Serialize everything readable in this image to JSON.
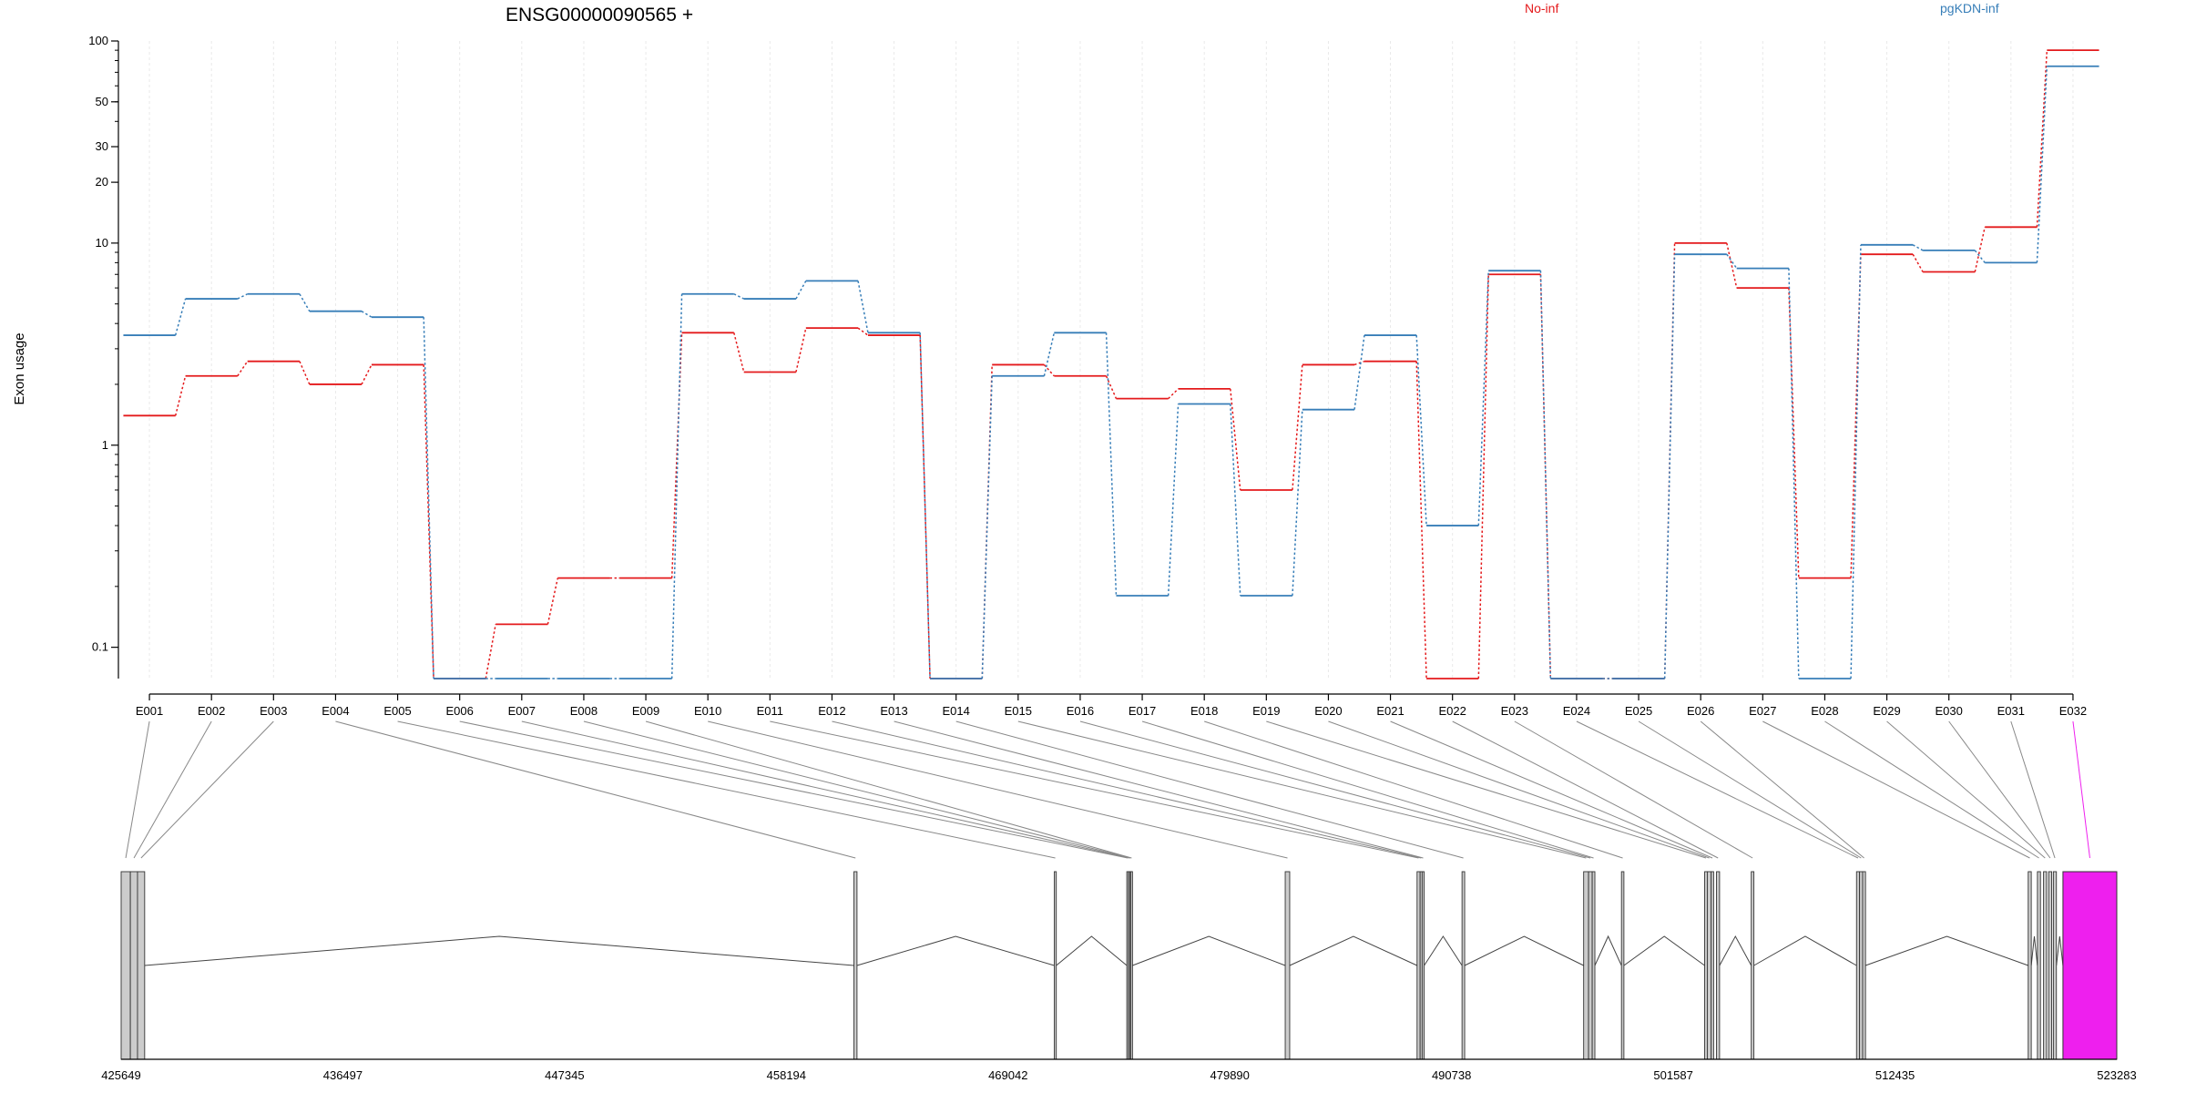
{
  "chart_data": {
    "type": "line",
    "title": "ENSG00000090565 +",
    "xlabel": "",
    "ylabel": "Exon usage",
    "y_scale": "log",
    "ylim": [
      0.07,
      100
    ],
    "y_ticks": [
      "100",
      "50",
      "30",
      "20",
      "10",
      "1",
      "0.1"
    ],
    "y_tick_values": [
      100,
      50,
      30,
      20,
      10,
      1,
      0.1
    ],
    "categories": [
      "E001",
      "E002",
      "E003",
      "E004",
      "E005",
      "E006",
      "E007",
      "E008",
      "E009",
      "E010",
      "E011",
      "E012",
      "E013",
      "E014",
      "E015",
      "E016",
      "E017",
      "E018",
      "E019",
      "E020",
      "E021",
      "E022",
      "E023",
      "E024",
      "E025",
      "E026",
      "E027",
      "E028",
      "E029",
      "E030",
      "E031",
      "E032"
    ],
    "series": [
      {
        "name": "No-inf",
        "color": "#e41a1c",
        "values": [
          1.4,
          2.2,
          2.6,
          2.0,
          2.5,
          0.07,
          0.13,
          0.22,
          0.22,
          3.6,
          2.3,
          3.8,
          3.5,
          0.07,
          2.5,
          2.2,
          1.7,
          1.9,
          0.6,
          2.5,
          2.6,
          0.07,
          7.0,
          0.07,
          0.07,
          10.0,
          6.0,
          0.22,
          8.8,
          7.2,
          12.0,
          90.0
        ]
      },
      {
        "name": "pgKDN-inf",
        "color": "#377eb8",
        "values": [
          3.5,
          5.3,
          5.6,
          4.6,
          4.3,
          0.07,
          0.07,
          0.07,
          0.07,
          5.6,
          5.3,
          6.5,
          3.6,
          0.07,
          2.2,
          3.6,
          0.18,
          1.6,
          0.18,
          1.5,
          3.5,
          0.4,
          7.3,
          0.07,
          0.07,
          8.8,
          7.5,
          0.07,
          9.8,
          9.2,
          8.0,
          75.0
        ]
      }
    ],
    "legend_placement": "top",
    "grid": true,
    "gene_model": {
      "coordinate_ticks": [
        "425649",
        "436497",
        "447345",
        "458194",
        "469042",
        "479890",
        "490738",
        "501587",
        "512435",
        "523283"
      ],
      "coordinate_values": [
        425649,
        436497,
        447345,
        458194,
        469042,
        479890,
        490738,
        501587,
        512435,
        523283
      ],
      "highlight_color": "#ee1fee",
      "exons": [
        {
          "id": "E001",
          "start": 425649,
          "end": 426100
        },
        {
          "id": "E002",
          "start": 426100,
          "end": 426450
        },
        {
          "id": "E003",
          "start": 426450,
          "end": 426800
        },
        {
          "id": "E004",
          "start": 461500,
          "end": 461650
        },
        {
          "id": "E005",
          "start": 471300,
          "end": 471400
        },
        {
          "id": "E006",
          "start": 474850,
          "end": 474930
        },
        {
          "id": "E007",
          "start": 474930,
          "end": 474990
        },
        {
          "id": "E008",
          "start": 474990,
          "end": 475040
        },
        {
          "id": "E009",
          "start": 475040,
          "end": 475100
        },
        {
          "id": "E010",
          "start": 482600,
          "end": 482820
        },
        {
          "id": "E011",
          "start": 489050,
          "end": 489200
        },
        {
          "id": "E012",
          "start": 489200,
          "end": 489300
        },
        {
          "id": "E013",
          "start": 489300,
          "end": 489400
        },
        {
          "id": "E014",
          "start": 491250,
          "end": 491380
        },
        {
          "id": "E015",
          "start": 497200,
          "end": 497440
        },
        {
          "id": "E016",
          "start": 497440,
          "end": 497620
        },
        {
          "id": "E017",
          "start": 497620,
          "end": 497750
        },
        {
          "id": "E018",
          "start": 499050,
          "end": 499170
        },
        {
          "id": "E019",
          "start": 503120,
          "end": 503250
        },
        {
          "id": "E020",
          "start": 503250,
          "end": 503440
        },
        {
          "id": "E021",
          "start": 503440,
          "end": 503560
        },
        {
          "id": "E022",
          "start": 503700,
          "end": 503850
        },
        {
          "id": "E023",
          "start": 505400,
          "end": 505530
        },
        {
          "id": "E024",
          "start": 510550,
          "end": 510700
        },
        {
          "id": "E025",
          "start": 510700,
          "end": 510850
        },
        {
          "id": "E026",
          "start": 510850,
          "end": 510990
        },
        {
          "id": "E027",
          "start": 518950,
          "end": 519100
        },
        {
          "id": "E028",
          "start": 519400,
          "end": 519550
        },
        {
          "id": "E029",
          "start": 519700,
          "end": 519850
        },
        {
          "id": "E030",
          "start": 519950,
          "end": 520100
        },
        {
          "id": "E031",
          "start": 520180,
          "end": 520330
        },
        {
          "id": "E032",
          "start": 520650,
          "end": 523283
        }
      ]
    }
  }
}
